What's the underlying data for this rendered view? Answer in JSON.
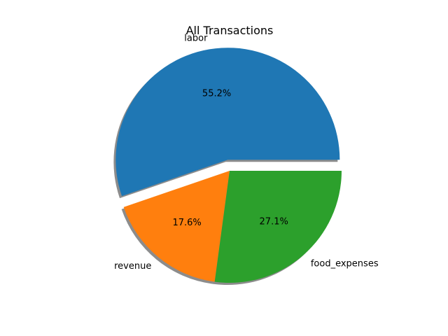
{
  "chart_data": {
    "type": "pie",
    "title": "All Transactions",
    "slices": [
      {
        "label": "labor",
        "value": 55.2,
        "pct_label": "55.2%",
        "color": "#1f77b4",
        "exploded": true
      },
      {
        "label": "revenue",
        "value": 17.6,
        "pct_label": "17.6%",
        "color": "#ff7f0e",
        "exploded": false
      },
      {
        "label": "food_expenses",
        "value": 27.1,
        "pct_label": "27.1%",
        "color": "#2ca02c",
        "exploded": false
      }
    ],
    "start_angle": 0,
    "direction": "counterclockwise",
    "shadow": true,
    "legend": "none"
  }
}
